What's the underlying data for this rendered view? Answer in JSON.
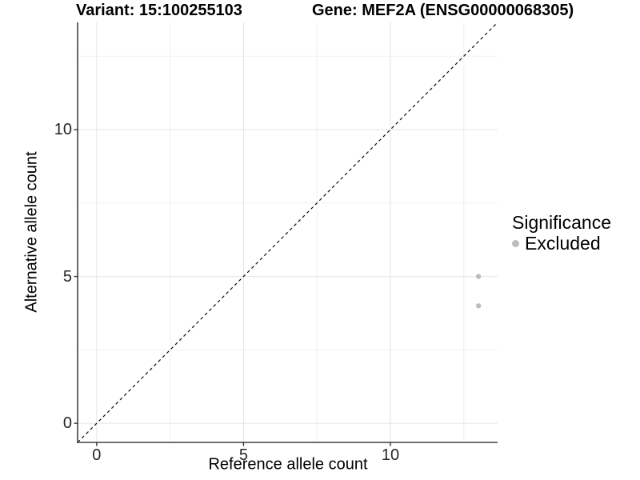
{
  "header": {
    "variant_title": "Variant: 15:100255103",
    "gene_title": "Gene: MEF2A (ENSG00000068305)"
  },
  "legend": {
    "title": "Significance",
    "items": [
      {
        "label": "Excluded",
        "color": "#bdbdbd"
      }
    ]
  },
  "chart_data": {
    "type": "scatter",
    "title_left": "Variant: 15:100255103",
    "title_right": "Gene: MEF2A (ENSG00000068305)",
    "xlabel": "Reference allele count",
    "ylabel": "Alternative allele count",
    "xlim": [
      -0.65,
      13.65
    ],
    "ylim": [
      -0.65,
      13.65
    ],
    "x_ticks": [
      0,
      5,
      10
    ],
    "y_ticks": [
      0,
      5,
      10
    ],
    "x_minor_ticks": [
      2.5,
      7.5,
      12.5
    ],
    "y_minor_ticks": [
      2.5,
      7.5,
      12.5
    ],
    "grid": "major+minor",
    "legend_position": "right",
    "identity_line": {
      "equation": "y = x",
      "style": "dashed",
      "color": "#111111"
    },
    "series": [
      {
        "name": "Excluded",
        "color": "#bdbdbd",
        "points": [
          [
            13,
            5
          ],
          [
            13,
            4
          ]
        ]
      }
    ],
    "colors": {
      "background": "#ffffff",
      "grid_major": "#e4e4e4",
      "grid_minor": "#efefef",
      "axis_line": "#404040",
      "tick_mark": "#333333",
      "text": "#000000"
    }
  }
}
